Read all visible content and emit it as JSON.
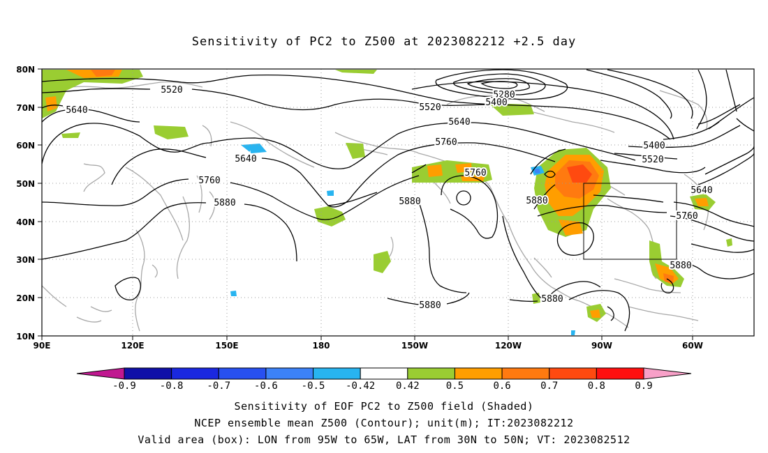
{
  "title": "Sensitivity of PC2 to Z500 at 2023082212 +2.5 day",
  "map": {
    "lon_ticks": [
      "90E",
      "120E",
      "150E",
      "180",
      "150W",
      "120W",
      "90W",
      "60W"
    ],
    "lat_ticks": [
      "80N",
      "70N",
      "60N",
      "50N",
      "40N",
      "30N",
      "20N",
      "10N"
    ],
    "contour_labels": [
      {
        "id": "c5520a",
        "text": "5520"
      },
      {
        "id": "c5640a",
        "text": "5640"
      },
      {
        "id": "c5280",
        "text": "5280"
      },
      {
        "id": "c5400a",
        "text": "5400"
      },
      {
        "id": "c5520b",
        "text": "5520"
      },
      {
        "id": "c5640b",
        "text": "5640"
      },
      {
        "id": "c5760a",
        "text": "5760"
      },
      {
        "id": "c5640c",
        "text": "5640"
      },
      {
        "id": "c5760b",
        "text": "5760"
      },
      {
        "id": "c5880a",
        "text": "5880"
      },
      {
        "id": "c5760c",
        "text": "5760"
      },
      {
        "id": "c5880b",
        "text": "5880"
      },
      {
        "id": "c5880c",
        "text": "5880"
      },
      {
        "id": "c5400b",
        "text": "5400"
      },
      {
        "id": "c5520c",
        "text": "5520"
      },
      {
        "id": "c5640d",
        "text": "5640"
      },
      {
        "id": "c5760d",
        "text": "5760"
      },
      {
        "id": "c5880d",
        "text": "5880"
      },
      {
        "id": "c5880e",
        "text": "5880"
      },
      {
        "id": "c5880f",
        "text": "5880"
      }
    ],
    "valid_box": {
      "lon_west": "95W",
      "lon_east": "65W",
      "lat_south": "30N",
      "lat_north": "50N"
    }
  },
  "colorbar": {
    "labels": [
      "-0.9",
      "-0.8",
      "-0.7",
      "-0.6",
      "-0.5",
      "-0.42",
      "0.42",
      "0.5",
      "0.6",
      "0.7",
      "0.8",
      "0.9"
    ],
    "colors": [
      "#1010a8",
      "#1a28e0",
      "#2850f0",
      "#3c82f8",
      "#28b4f0",
      "#ffffff",
      "#9acd32",
      "#ff9e00",
      "#ff7a10",
      "#ff4a10",
      "#ff1010"
    ],
    "low_end_color": "#c01890",
    "high_end_color": "#f8a0c8"
  },
  "caption": {
    "line1": "Sensitivity of EOF PC2 to Z500 field (Shaded)",
    "line2": "NCEP ensemble mean Z500 (Contour); unit(m); IT:2023082212",
    "line3": "Valid area (box): LON from 95W to 65W, LAT from 30N to 50N; VT: 2023082512"
  }
}
